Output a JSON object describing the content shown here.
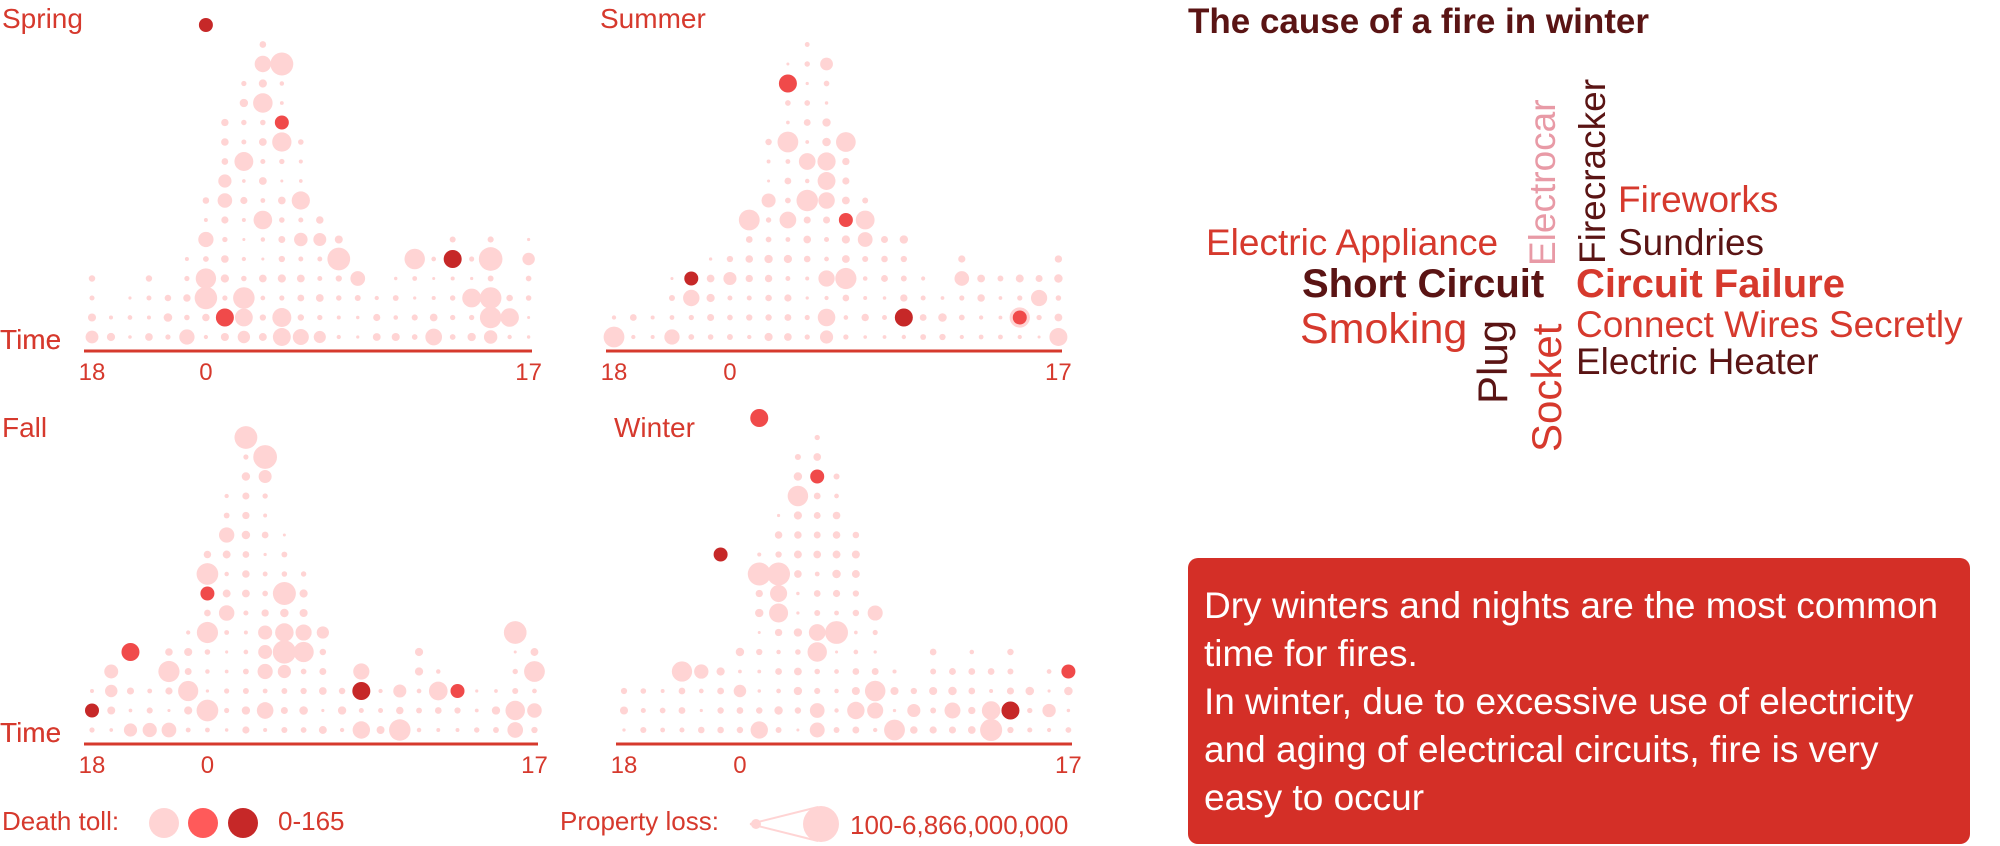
{
  "colors": {
    "axis": "#d6392d",
    "text_red": "#d6392d",
    "dark_red": "#5a1414",
    "deep_red": "#c62828",
    "pink": "#ffd4d4",
    "box_bg": "#d42f27",
    "death_scale": [
      "#ffd4d4",
      "#ff5a5a",
      "#c62828"
    ]
  },
  "chart_data": [
    {
      "type": "scatter",
      "title": "Spring",
      "ylabel": "Time",
      "x_ticks": [
        "18",
        "0",
        "17"
      ],
      "series": [
        {
          "name": "Property loss",
          "x": [
            -4,
            3,
            5,
            11,
            14
          ],
          "size": [
            2,
            1,
            2,
            2,
            1
          ]
        },
        {
          "name": "Death toll",
          "x": [
            0,
            1,
            4,
            13
          ],
          "y": [
            16,
            1,
            11,
            4
          ]
        }
      ]
    },
    {
      "type": "scatter",
      "title": "Summer",
      "ylabel": "Time",
      "x_ticks": [
        "18",
        "0",
        "17"
      ],
      "series": [
        {
          "name": "Property loss",
          "x": [
            -5,
            1,
            3,
            6,
            12
          ],
          "size": [
            2,
            2,
            1,
            2,
            1
          ]
        },
        {
          "name": "Death toll",
          "x": [
            -2,
            3,
            6,
            9,
            15
          ],
          "y": [
            3,
            13,
            6,
            1,
            1
          ]
        }
      ]
    },
    {
      "type": "scatter",
      "title": "Fall",
      "ylabel": "Time",
      "x_ticks": [
        "18",
        "0",
        "17"
      ],
      "series": [
        {
          "name": "Property loss",
          "x": [
            -1,
            2,
            4,
            8,
            16
          ],
          "size": [
            2,
            2,
            2,
            2,
            2
          ]
        },
        {
          "name": "Death toll",
          "x": [
            -6,
            -4,
            0,
            8,
            13
          ],
          "y": [
            1,
            4,
            7,
            2,
            2
          ]
        }
      ]
    },
    {
      "type": "scatter",
      "title": "Winter",
      "ylabel": "Time",
      "x_ticks": [
        "18",
        "0",
        "17"
      ],
      "series": [
        {
          "name": "Property loss",
          "x": [
            -3,
            1,
            3,
            6,
            12
          ],
          "size": [
            2,
            2,
            2,
            2,
            2
          ]
        },
        {
          "name": "Death toll",
          "x": [
            -1,
            1,
            4,
            14,
            17
          ],
          "y": [
            9,
            16,
            13,
            1,
            3
          ]
        }
      ]
    }
  ],
  "legend": {
    "death_label": "Death toll:",
    "death_range": "0-165",
    "loss_label": "Property loss:",
    "loss_range": "100-6,866,000,000"
  },
  "cloud": {
    "title": "The cause of a fire in winter",
    "words": {
      "electric_appliance": "Electric Appliance",
      "short_circuit": "Short Circuit",
      "smoking": "Smoking",
      "plug": "Plug",
      "socket": "Socket",
      "electrocar": "Electrocar",
      "firecracker": "Firecracker",
      "fireworks": "Fireworks",
      "sundries": "Sundries",
      "circuit_failure": "Circuit Failure",
      "connect_wires": "Connect Wires Secretly",
      "electric_heater": "Electric Heater"
    }
  },
  "info": {
    "line1": "Dry winters and nights are the most common time for fires.",
    "line2": "In winter, due to excessive use of electricity and aging of electrical circuits, fire is very easy to occur"
  }
}
